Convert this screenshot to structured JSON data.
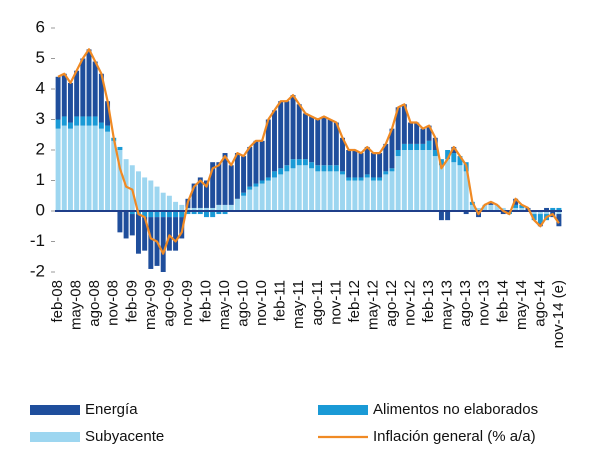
{
  "chart_data": {
    "type": "stacked-bar-line",
    "categories": [
      "feb-08",
      null,
      null,
      "may-08",
      null,
      null,
      "ago-08",
      null,
      null,
      "nov-08",
      null,
      null,
      "feb-09",
      null,
      null,
      "may-09",
      null,
      null,
      "ago-09",
      null,
      null,
      "nov-09",
      null,
      null,
      "feb-10",
      null,
      null,
      "may-10",
      null,
      null,
      "ago-10",
      null,
      null,
      "nov-10",
      null,
      null,
      "feb-11",
      null,
      null,
      "may-11",
      null,
      null,
      "ago-11",
      null,
      null,
      "nov-11",
      null,
      null,
      "feb-12",
      null,
      null,
      "may-12",
      null,
      null,
      "ago-12",
      null,
      null,
      "nov-12",
      null,
      null,
      "feb-13",
      null,
      null,
      "may-13",
      null,
      null,
      "ago-13",
      null,
      null,
      "nov-13",
      null,
      null,
      "feb-14",
      null,
      null,
      "may-14",
      null,
      null,
      "ago-14",
      null,
      null,
      "nov-14 (e)"
    ],
    "series": [
      {
        "name": "Subyacente",
        "color": "#9dd6f0",
        "kind": "bar",
        "values": [
          2.7,
          2.8,
          2.7,
          2.8,
          2.8,
          2.8,
          2.8,
          2.7,
          2.6,
          2.3,
          2.0,
          1.7,
          1.5,
          1.3,
          1.1,
          1.0,
          0.8,
          0.6,
          0.5,
          0.3,
          0.2,
          0.1,
          0.1,
          0.1,
          0.1,
          0.1,
          0.2,
          0.2,
          0.2,
          0.4,
          0.5,
          0.7,
          0.8,
          0.9,
          1.0,
          1.1,
          1.2,
          1.3,
          1.4,
          1.5,
          1.5,
          1.4,
          1.3,
          1.3,
          1.3,
          1.3,
          1.2,
          1.0,
          1.0,
          1.0,
          1.1,
          1.0,
          1.0,
          1.2,
          1.3,
          1.8,
          2.0,
          2.0,
          2.0,
          2.0,
          2.0,
          1.8,
          1.5,
          1.7,
          1.6,
          1.5,
          1.3,
          0.2,
          0.1,
          0.2,
          0.2,
          0.2,
          0.1,
          0.0,
          0.1,
          0.1,
          0.0,
          -0.1,
          -0.1,
          -0.1,
          0.0,
          -0.1
        ]
      },
      {
        "name": "Alimentos no elaborados",
        "color": "#1a9ad6",
        "kind": "bar",
        "values": [
          0.3,
          0.3,
          0.2,
          0.3,
          0.3,
          0.3,
          0.3,
          0.2,
          0.2,
          0.1,
          0.1,
          0.0,
          -0.1,
          -0.1,
          -0.2,
          -0.2,
          -0.2,
          -0.2,
          -0.2,
          -0.2,
          -0.2,
          -0.1,
          -0.1,
          -0.1,
          -0.2,
          -0.2,
          -0.1,
          -0.1,
          0.0,
          0.0,
          0.1,
          0.1,
          0.1,
          0.1,
          0.1,
          0.2,
          0.2,
          0.2,
          0.3,
          0.2,
          0.2,
          0.2,
          0.2,
          0.2,
          0.2,
          0.2,
          0.1,
          0.1,
          0.1,
          0.1,
          0.1,
          0.1,
          0.1,
          0.1,
          0.1,
          0.2,
          0.2,
          0.2,
          0.2,
          0.2,
          0.3,
          0.2,
          0.2,
          0.3,
          0.3,
          0.3,
          0.3,
          0.1,
          0.0,
          0.0,
          0.0,
          0.0,
          0.0,
          -0.1,
          0.1,
          0.1,
          0.0,
          -0.2,
          -0.3,
          -0.2,
          0.1,
          0.1
        ]
      },
      {
        "name": "Energía",
        "color": "#1f4e9c",
        "kind": "bar",
        "values": [
          1.4,
          1.4,
          1.3,
          1.5,
          1.9,
          2.2,
          1.8,
          1.6,
          0.8,
          0.0,
          -0.7,
          -0.9,
          -0.7,
          -1.3,
          -1.1,
          -1.7,
          -1.6,
          -1.8,
          -1.1,
          -1.1,
          -0.7,
          0.3,
          0.8,
          1.0,
          0.9,
          1.5,
          1.4,
          1.7,
          1.3,
          1.5,
          1.2,
          1.3,
          1.4,
          1.3,
          1.9,
          2.0,
          2.2,
          2.1,
          2.1,
          1.8,
          1.5,
          1.5,
          1.5,
          1.6,
          1.5,
          1.4,
          1.1,
          0.9,
          0.9,
          0.8,
          0.9,
          0.8,
          0.8,
          0.9,
          1.3,
          1.4,
          1.3,
          0.7,
          0.7,
          0.5,
          0.5,
          0.4,
          -0.3,
          -0.3,
          0.2,
          0.0,
          -0.1,
          0.0,
          -0.2,
          0.0,
          0.1,
          0.0,
          -0.1,
          0.0,
          0.2,
          0.0,
          0.1,
          0.0,
          -0.1,
          0.1,
          -0.2,
          -0.4
        ]
      },
      {
        "name": "Inflación general (% a/a)",
        "color": "#f08a24",
        "kind": "line",
        "values": [
          4.4,
          4.5,
          4.2,
          4.6,
          5.0,
          5.3,
          4.9,
          4.5,
          3.6,
          2.4,
          1.4,
          0.8,
          0.7,
          -0.1,
          -0.2,
          -0.9,
          -1.0,
          -1.4,
          -0.8,
          -1.0,
          -0.7,
          0.3,
          0.8,
          1.0,
          0.8,
          1.4,
          1.5,
          1.8,
          1.5,
          1.9,
          1.8,
          2.1,
          2.3,
          2.3,
          3.0,
          3.3,
          3.6,
          3.6,
          3.8,
          3.5,
          3.2,
          3.1,
          3.0,
          3.1,
          3.0,
          2.9,
          2.4,
          2.0,
          2.0,
          1.9,
          2.1,
          1.9,
          1.9,
          2.2,
          2.7,
          3.4,
          3.5,
          2.9,
          2.9,
          2.7,
          2.8,
          2.4,
          1.4,
          1.7,
          2.1,
          1.8,
          1.5,
          0.3,
          -0.1,
          0.2,
          0.3,
          0.2,
          0.0,
          -0.1,
          0.4,
          0.2,
          0.1,
          -0.3,
          -0.5,
          -0.2,
          -0.1,
          -0.4
        ]
      }
    ],
    "legend_order": [
      2,
      1,
      0,
      3
    ],
    "ylim": [
      -2,
      6
    ],
    "yticks": [
      -2,
      -1,
      0,
      1,
      2,
      3,
      4,
      5,
      6
    ],
    "grid": false
  }
}
